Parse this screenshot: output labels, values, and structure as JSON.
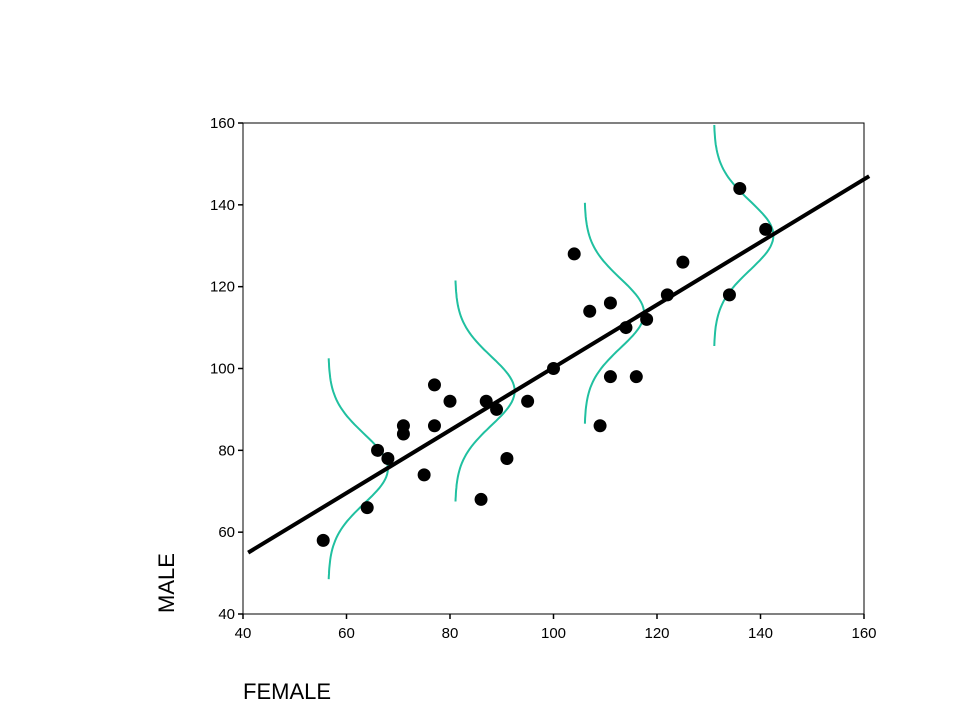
{
  "chart_data": {
    "type": "scatter",
    "title": "",
    "xlabel": "FEMALE",
    "ylabel": "MALE",
    "xlim": [
      40,
      160
    ],
    "ylim": [
      40,
      160
    ],
    "x_ticks": [
      40,
      60,
      80,
      100,
      120,
      140,
      160
    ],
    "y_ticks": [
      40,
      60,
      80,
      100,
      120,
      140,
      160
    ],
    "grid": false,
    "points": [
      [
        55.5,
        58
      ],
      [
        64,
        66
      ],
      [
        66,
        80
      ],
      [
        68,
        78
      ],
      [
        71,
        86
      ],
      [
        71,
        84
      ],
      [
        75,
        74
      ],
      [
        77,
        96
      ],
      [
        77,
        86
      ],
      [
        80,
        92
      ],
      [
        86,
        68
      ],
      [
        87,
        92
      ],
      [
        89,
        90
      ],
      [
        91,
        78
      ],
      [
        95,
        92
      ],
      [
        100,
        100
      ],
      [
        104,
        128
      ],
      [
        107,
        114
      ],
      [
        109,
        86
      ],
      [
        111,
        116
      ],
      [
        111,
        98
      ],
      [
        114,
        110
      ],
      [
        116,
        98
      ],
      [
        118,
        112
      ],
      [
        122,
        118
      ],
      [
        125,
        126
      ],
      [
        134,
        118
      ],
      [
        136,
        144
      ],
      [
        141,
        134
      ]
    ],
    "regression_line": {
      "x": [
        41,
        161
      ],
      "y": [
        55,
        147
      ],
      "color": "#000000"
    },
    "normal_curves": {
      "color": "#20c0a0",
      "centers": [
        {
          "x_base": 56.5,
          "y_mean": 75.5
        },
        {
          "x_base": 81,
          "y_mean": 94.5
        },
        {
          "x_base": 106,
          "y_mean": 113.5
        },
        {
          "x_base": 131,
          "y_mean": 132.5
        }
      ],
      "half_range_y": 27,
      "peak_width_x": 11.5
    }
  }
}
